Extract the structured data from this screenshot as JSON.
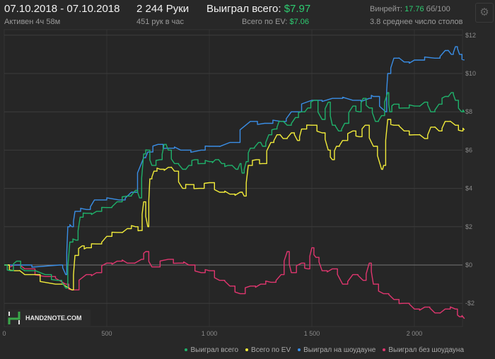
{
  "header": {
    "date_range": "07.10.2018 - 07.10.2018",
    "active": "Активен 4ч 58м",
    "hands": "2 244 Руки",
    "hands_per_hour": "451 рук в час",
    "won_label": "Выиграл всего: ",
    "won_value": "$7.97",
    "ev_label": "Всего по EV: ",
    "ev_value": "$7.06",
    "winrate_label": "Винрейт: ",
    "winrate_value": "17.76",
    "winrate_unit": " бб/100",
    "tables": "3.8 среднее число столов",
    "settings_icon": "gear-icon"
  },
  "logo": "HAND2NOTE.COM",
  "chart_data": {
    "type": "line",
    "xlim": [
      0,
      2244
    ],
    "ylim": [
      -3.2,
      12
    ],
    "grid": true,
    "legend_position": "bottom-right",
    "x_ticks": [
      {
        "v": 0,
        "label": "0"
      },
      {
        "v": 500,
        "label": "500"
      },
      {
        "v": 1000,
        "label": "1 000"
      },
      {
        "v": 1500,
        "label": "1 500"
      },
      {
        "v": 2000,
        "label": "2 000"
      }
    ],
    "y_ticks": [
      {
        "v": 12,
        "label": "$12"
      },
      {
        "v": 10,
        "label": "$10"
      },
      {
        "v": 8,
        "label": "$8"
      },
      {
        "v": 6,
        "label": "$6"
      },
      {
        "v": 4,
        "label": "$4"
      },
      {
        "v": 2,
        "label": "$2"
      },
      {
        "v": 0,
        "label": "$0"
      },
      {
        "v": -2,
        "label": "-$2"
      }
    ],
    "series": [
      {
        "name": "Выиграл всего",
        "color": "#1fb26b",
        "points": [
          [
            0,
            0
          ],
          [
            30,
            -0.3
          ],
          [
            60,
            0.2
          ],
          [
            100,
            -0.3
          ],
          [
            200,
            -0.5
          ],
          [
            260,
            -0.8
          ],
          [
            300,
            -1.2
          ],
          [
            320,
            1.2
          ],
          [
            350,
            1.3
          ],
          [
            370,
            2.5
          ],
          [
            400,
            2.7
          ],
          [
            450,
            2.8
          ],
          [
            500,
            3.0
          ],
          [
            550,
            3.3
          ],
          [
            600,
            3.6
          ],
          [
            640,
            3.9
          ],
          [
            660,
            3.5
          ],
          [
            680,
            5.8
          ],
          [
            700,
            6.0
          ],
          [
            720,
            5.2
          ],
          [
            760,
            5.5
          ],
          [
            780,
            6.3
          ],
          [
            800,
            6.0
          ],
          [
            830,
            5.3
          ],
          [
            870,
            5.0
          ],
          [
            900,
            5.2
          ],
          [
            930,
            5.5
          ],
          [
            960,
            5.3
          ],
          [
            1000,
            5.4
          ],
          [
            1030,
            5.5
          ],
          [
            1060,
            5.3
          ],
          [
            1090,
            5.2
          ],
          [
            1130,
            5.0
          ],
          [
            1150,
            5.3
          ],
          [
            1160,
            4.8
          ],
          [
            1180,
            5.4
          ],
          [
            1200,
            6.1
          ],
          [
            1240,
            6.4
          ],
          [
            1260,
            6.2
          ],
          [
            1290,
            6.8
          ],
          [
            1320,
            7.1
          ],
          [
            1340,
            7.5
          ],
          [
            1380,
            7.3
          ],
          [
            1420,
            7.7
          ],
          [
            1450,
            8.0
          ],
          [
            1480,
            8.2
          ],
          [
            1510,
            8.6
          ],
          [
            1550,
            7.6
          ],
          [
            1580,
            8.5
          ],
          [
            1600,
            7.3
          ],
          [
            1630,
            7.0
          ],
          [
            1660,
            7.4
          ],
          [
            1700,
            8.3
          ],
          [
            1730,
            8.0
          ],
          [
            1750,
            8.7
          ],
          [
            1780,
            8.2
          ],
          [
            1810,
            7.5
          ],
          [
            1840,
            7.8
          ],
          [
            1870,
            9.0
          ],
          [
            1880,
            8.0
          ],
          [
            1900,
            8.4
          ],
          [
            1950,
            8.2
          ],
          [
            2000,
            8.3
          ],
          [
            2050,
            8.5
          ],
          [
            2080,
            8.0
          ],
          [
            2120,
            8.4
          ],
          [
            2150,
            8.8
          ],
          [
            2180,
            9.0
          ],
          [
            2200,
            8.6
          ],
          [
            2230,
            8.0
          ],
          [
            2244,
            7.97
          ]
        ]
      },
      {
        "name": "Всего по EV",
        "color": "#f2ec3a",
        "points": [
          [
            0,
            0
          ],
          [
            50,
            -0.3
          ],
          [
            100,
            -0.5
          ],
          [
            250,
            -1.0
          ],
          [
            330,
            -1.3
          ],
          [
            345,
            0.5
          ],
          [
            380,
            1.0
          ],
          [
            400,
            0.9
          ],
          [
            450,
            1.1
          ],
          [
            500,
            1.5
          ],
          [
            550,
            1.7
          ],
          [
            600,
            1.9
          ],
          [
            640,
            2.0
          ],
          [
            665,
            1.8
          ],
          [
            680,
            3.3
          ],
          [
            700,
            2.0
          ],
          [
            710,
            4.5
          ],
          [
            730,
            4.9
          ],
          [
            760,
            5.0
          ],
          [
            800,
            5.1
          ],
          [
            830,
            4.9
          ],
          [
            870,
            4.0
          ],
          [
            900,
            4.2
          ],
          [
            950,
            4.0
          ],
          [
            1000,
            4.3
          ],
          [
            1050,
            3.8
          ],
          [
            1100,
            3.7
          ],
          [
            1150,
            3.8
          ],
          [
            1170,
            3.6
          ],
          [
            1190,
            5.2
          ],
          [
            1230,
            5.5
          ],
          [
            1260,
            5.3
          ],
          [
            1300,
            6.4
          ],
          [
            1330,
            6.8
          ],
          [
            1360,
            6.6
          ],
          [
            1400,
            6.9
          ],
          [
            1430,
            6.5
          ],
          [
            1450,
            7.1
          ],
          [
            1500,
            7.3
          ],
          [
            1550,
            6.9
          ],
          [
            1580,
            6.0
          ],
          [
            1600,
            5.5
          ],
          [
            1620,
            6.2
          ],
          [
            1650,
            6.5
          ],
          [
            1700,
            7.0
          ],
          [
            1730,
            6.7
          ],
          [
            1760,
            7.3
          ],
          [
            1800,
            6.2
          ],
          [
            1840,
            5.0
          ],
          [
            1850,
            5.2
          ],
          [
            1870,
            7.6
          ],
          [
            1900,
            7.3
          ],
          [
            1950,
            7.0
          ],
          [
            2000,
            6.8
          ],
          [
            2050,
            6.6
          ],
          [
            2080,
            7.2
          ],
          [
            2120,
            7.0
          ],
          [
            2150,
            7.5
          ],
          [
            2200,
            7.3
          ],
          [
            2230,
            7.0
          ],
          [
            2244,
            7.06
          ]
        ]
      },
      {
        "name": "Выиграл на шоудауне",
        "color": "#3a8ee6",
        "points": [
          [
            0,
            0
          ],
          [
            270,
            0
          ],
          [
            300,
            -0.5
          ],
          [
            310,
            2.0
          ],
          [
            330,
            2.0
          ],
          [
            345,
            2.8
          ],
          [
            400,
            2.9
          ],
          [
            440,
            3.4
          ],
          [
            560,
            3.4
          ],
          [
            620,
            3.8
          ],
          [
            680,
            5.6
          ],
          [
            700,
            5.9
          ],
          [
            750,
            6.3
          ],
          [
            800,
            6.1
          ],
          [
            860,
            6.0
          ],
          [
            960,
            6.0
          ],
          [
            1000,
            6.2
          ],
          [
            1100,
            6.4
          ],
          [
            1200,
            7.5
          ],
          [
            1270,
            7.4
          ],
          [
            1350,
            7.5
          ],
          [
            1400,
            8.0
          ],
          [
            1500,
            8.6
          ],
          [
            1600,
            8.7
          ],
          [
            1700,
            8.6
          ],
          [
            1780,
            8.7
          ],
          [
            1800,
            8.8
          ],
          [
            1860,
            8.0
          ],
          [
            1870,
            10.0
          ],
          [
            1900,
            10.8
          ],
          [
            1950,
            10.6
          ],
          [
            2000,
            10.7
          ],
          [
            2100,
            10.8
          ],
          [
            2150,
            11.2
          ],
          [
            2180,
            11.0
          ],
          [
            2200,
            11.4
          ],
          [
            2220,
            11.0
          ],
          [
            2244,
            10.7
          ]
        ]
      },
      {
        "name": "Выиграл без шоудауна",
        "color": "#e0366f",
        "points": [
          [
            0,
            0
          ],
          [
            50,
            0
          ],
          [
            100,
            -0.2
          ],
          [
            200,
            -0.6
          ],
          [
            300,
            -1.0
          ],
          [
            330,
            -1.3
          ],
          [
            400,
            -0.5
          ],
          [
            450,
            -0.4
          ],
          [
            500,
            0.1
          ],
          [
            550,
            0.2
          ],
          [
            600,
            0.1
          ],
          [
            670,
            0.3
          ],
          [
            690,
            0.7
          ],
          [
            720,
            -0.1
          ],
          [
            800,
            0.3
          ],
          [
            850,
            0.1
          ],
          [
            900,
            0
          ],
          [
            960,
            -0.4
          ],
          [
            1000,
            -0.3
          ],
          [
            1050,
            -0.8
          ],
          [
            1100,
            -1.1
          ],
          [
            1150,
            -1.5
          ],
          [
            1200,
            -1.1
          ],
          [
            1250,
            -1.0
          ],
          [
            1300,
            -0.9
          ],
          [
            1350,
            -0.5
          ],
          [
            1380,
            0.7
          ],
          [
            1400,
            -0.4
          ],
          [
            1450,
            0.1
          ],
          [
            1480,
            -0.2
          ],
          [
            1500,
            0.9
          ],
          [
            1520,
            0.4
          ],
          [
            1550,
            -0.3
          ],
          [
            1600,
            -0.2
          ],
          [
            1650,
            -1.0
          ],
          [
            1700,
            -0.5
          ],
          [
            1750,
            -0.8
          ],
          [
            1780,
            0.1
          ],
          [
            1800,
            -1.0
          ],
          [
            1850,
            -1.5
          ],
          [
            1900,
            -1.8
          ],
          [
            1950,
            -2.0
          ],
          [
            2000,
            -2.3
          ],
          [
            2050,
            -2.2
          ],
          [
            2100,
            -2.5
          ],
          [
            2150,
            -2.3
          ],
          [
            2200,
            -2.3
          ],
          [
            2220,
            -2.7
          ],
          [
            2244,
            -2.8
          ]
        ]
      }
    ]
  }
}
